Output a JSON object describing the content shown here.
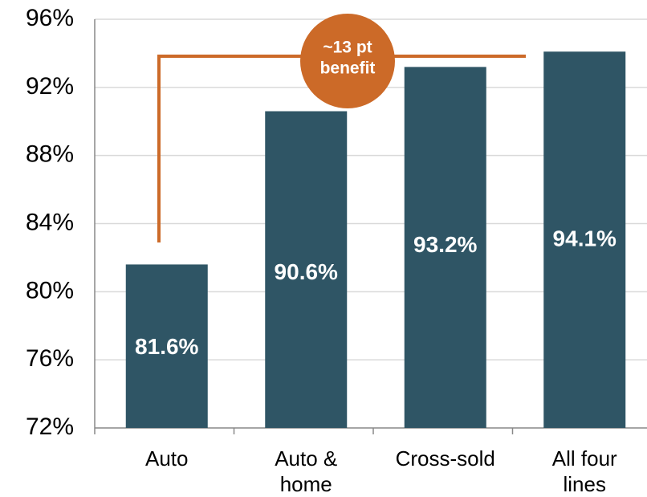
{
  "chart_data": {
    "type": "bar",
    "categories": [
      "Auto",
      "Auto & home",
      "Cross-sold",
      "All four lines"
    ],
    "values": [
      81.6,
      90.6,
      93.2,
      94.1
    ],
    "value_labels": [
      "81.6%",
      "90.6%",
      "93.2%",
      "94.1%"
    ],
    "color": "#2f5565",
    "ylim": [
      72,
      96
    ],
    "yticks": [
      {
        "value": 72,
        "label": "72%"
      },
      {
        "value": 76,
        "label": "76%"
      },
      {
        "value": 80,
        "label": "80%"
      },
      {
        "value": 84,
        "label": "84%"
      },
      {
        "value": 88,
        "label": "88%"
      },
      {
        "value": 92,
        "label": "92%"
      },
      {
        "value": 96,
        "label": "96%"
      }
    ],
    "grid": true,
    "annotation": [
      "~13 pt",
      "benefit"
    ]
  }
}
